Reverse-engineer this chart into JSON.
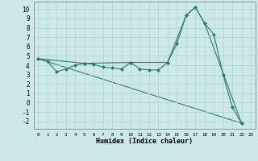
{
  "xlabel": "Humidex (Indice chaleur)",
  "bg_color": "#cce8e8",
  "line_color": "#2d7a6e",
  "grid_color": "#aed4d4",
  "xlim": [
    -0.5,
    23.5
  ],
  "ylim": [
    -2.8,
    10.8
  ],
  "xticks": [
    0,
    1,
    2,
    3,
    4,
    5,
    6,
    7,
    8,
    9,
    10,
    11,
    12,
    13,
    14,
    15,
    16,
    17,
    18,
    19,
    20,
    21,
    22,
    23
  ],
  "yticks": [
    -2,
    -1,
    0,
    1,
    2,
    3,
    4,
    5,
    6,
    7,
    8,
    9,
    10
  ],
  "line1_x": [
    0,
    1,
    2,
    3,
    4,
    5,
    6,
    7,
    8,
    9,
    10,
    11,
    12,
    13,
    14,
    15,
    16,
    17,
    18,
    19,
    20,
    21,
    22
  ],
  "line1_y": [
    4.7,
    4.4,
    3.3,
    3.6,
    4.0,
    4.2,
    4.1,
    3.8,
    3.7,
    3.6,
    4.3,
    3.6,
    3.5,
    3.5,
    4.3,
    6.3,
    9.3,
    10.2,
    8.5,
    7.3,
    3.0,
    -0.5,
    -2.2
  ],
  "line2_x": [
    0,
    5,
    10,
    14,
    16,
    17,
    18,
    22
  ],
  "line2_y": [
    4.7,
    4.2,
    4.3,
    4.3,
    9.3,
    10.2,
    8.5,
    -2.2
  ],
  "line3_x": [
    0,
    22
  ],
  "line3_y": [
    4.7,
    -2.2
  ],
  "marker": "D",
  "markersize": 2.5
}
